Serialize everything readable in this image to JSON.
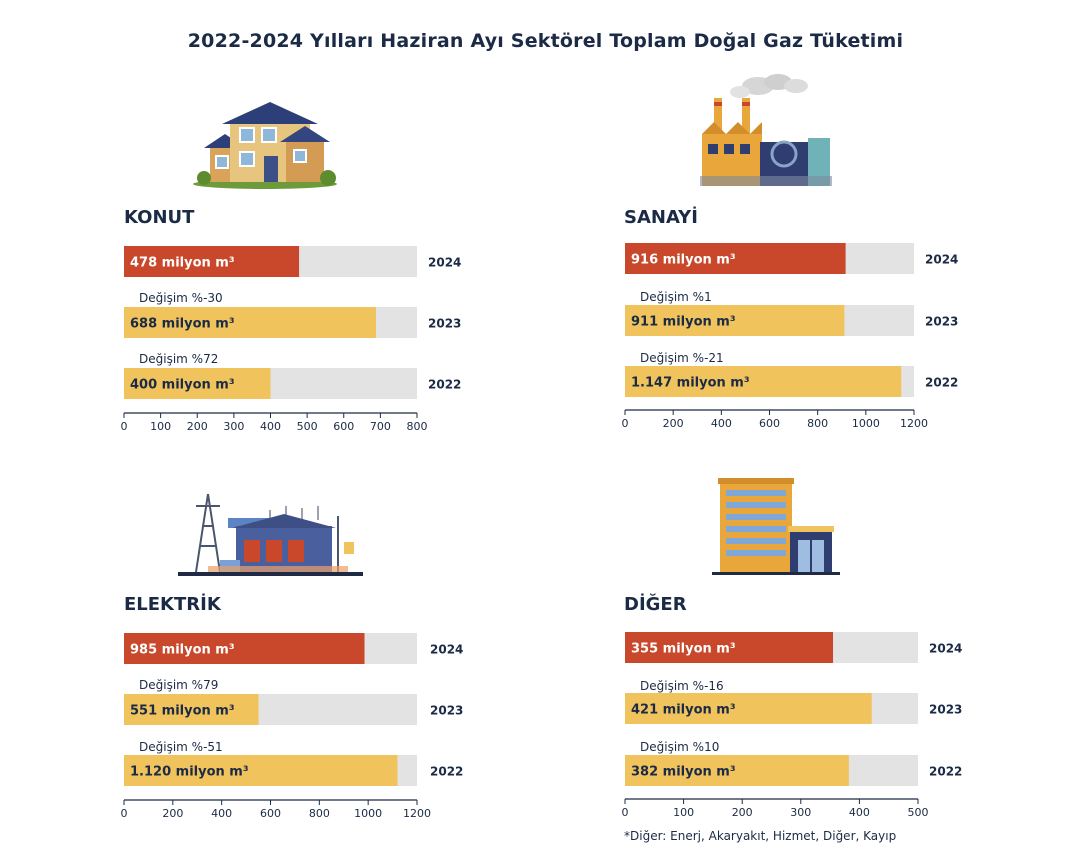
{
  "title": "2022-2024 Yılları Haziran Ayı Sektörel Toplam Doğal Gaz Tüketimi",
  "footnote": "*Diğer: Enerj, Akaryakıt, Hizmet, Diğer, Kayıp",
  "colors": {
    "current": "#c9472a",
    "previous": "#f0c35d",
    "track": "#e3e3e3",
    "text": "#1b2a45"
  },
  "chart_data": [
    {
      "type": "bar",
      "sector": "KONUT",
      "illustration": "house-icon",
      "unit_suffix": "milyon m³",
      "xlim": [
        0,
        800
      ],
      "ticks": [
        "0",
        "100",
        "200",
        "300",
        "400",
        "500",
        "600",
        "700",
        "800"
      ],
      "bars": [
        {
          "year": "2024",
          "value": 478,
          "label": "478 milyon m³",
          "highlight": true
        },
        {
          "year": "2023",
          "value": 688,
          "label": "688 milyon m³",
          "highlight": false
        },
        {
          "year": "2022",
          "value": 400,
          "label": "400 milyon m³",
          "highlight": false
        }
      ],
      "changes": [
        "Değişim %-30",
        "Değişim %72"
      ]
    },
    {
      "type": "bar",
      "sector": "SANAYİ",
      "illustration": "factory-icon",
      "unit_suffix": "milyon m³",
      "xlim": [
        0,
        1200
      ],
      "ticks": [
        "0",
        "200",
        "400",
        "600",
        "800",
        "1000",
        "1200"
      ],
      "bars": [
        {
          "year": "2024",
          "value": 916,
          "label": "916 milyon m³",
          "highlight": true
        },
        {
          "year": "2023",
          "value": 911,
          "label": "911 milyon m³",
          "highlight": false
        },
        {
          "year": "2022",
          "value": 1147,
          "label": "1.147 milyon m³",
          "highlight": false
        }
      ],
      "changes": [
        "Değişim %1",
        "Değişim %-21"
      ]
    },
    {
      "type": "bar",
      "sector": "ELEKTRİK",
      "illustration": "power-plant-icon",
      "unit_suffix": "milyon m³",
      "xlim": [
        0,
        1200
      ],
      "ticks": [
        "0",
        "200",
        "400",
        "600",
        "800",
        "1000",
        "1200"
      ],
      "bars": [
        {
          "year": "2024",
          "value": 985,
          "label": "985 milyon m³",
          "highlight": true
        },
        {
          "year": "2023",
          "value": 551,
          "label": "551 milyon m³",
          "highlight": false
        },
        {
          "year": "2022",
          "value": 1120,
          "label": "1.120 milyon m³",
          "highlight": false
        }
      ],
      "changes": [
        "Değişim %79",
        "Değişim %-51"
      ]
    },
    {
      "type": "bar",
      "sector": "DİĞER",
      "illustration": "office-building-icon",
      "unit_suffix": "milyon m³",
      "xlim": [
        0,
        500
      ],
      "ticks": [
        "0",
        "100",
        "200",
        "300",
        "400",
        "500"
      ],
      "bars": [
        {
          "year": "2024",
          "value": 355,
          "label": "355 milyon m³",
          "highlight": true
        },
        {
          "year": "2023",
          "value": 421,
          "label": "421 milyon m³",
          "highlight": false
        },
        {
          "year": "2022",
          "value": 382,
          "label": "382 milyon m³",
          "highlight": false
        }
      ],
      "changes": [
        "Değişim %-16",
        "Değişim %10"
      ]
    }
  ]
}
